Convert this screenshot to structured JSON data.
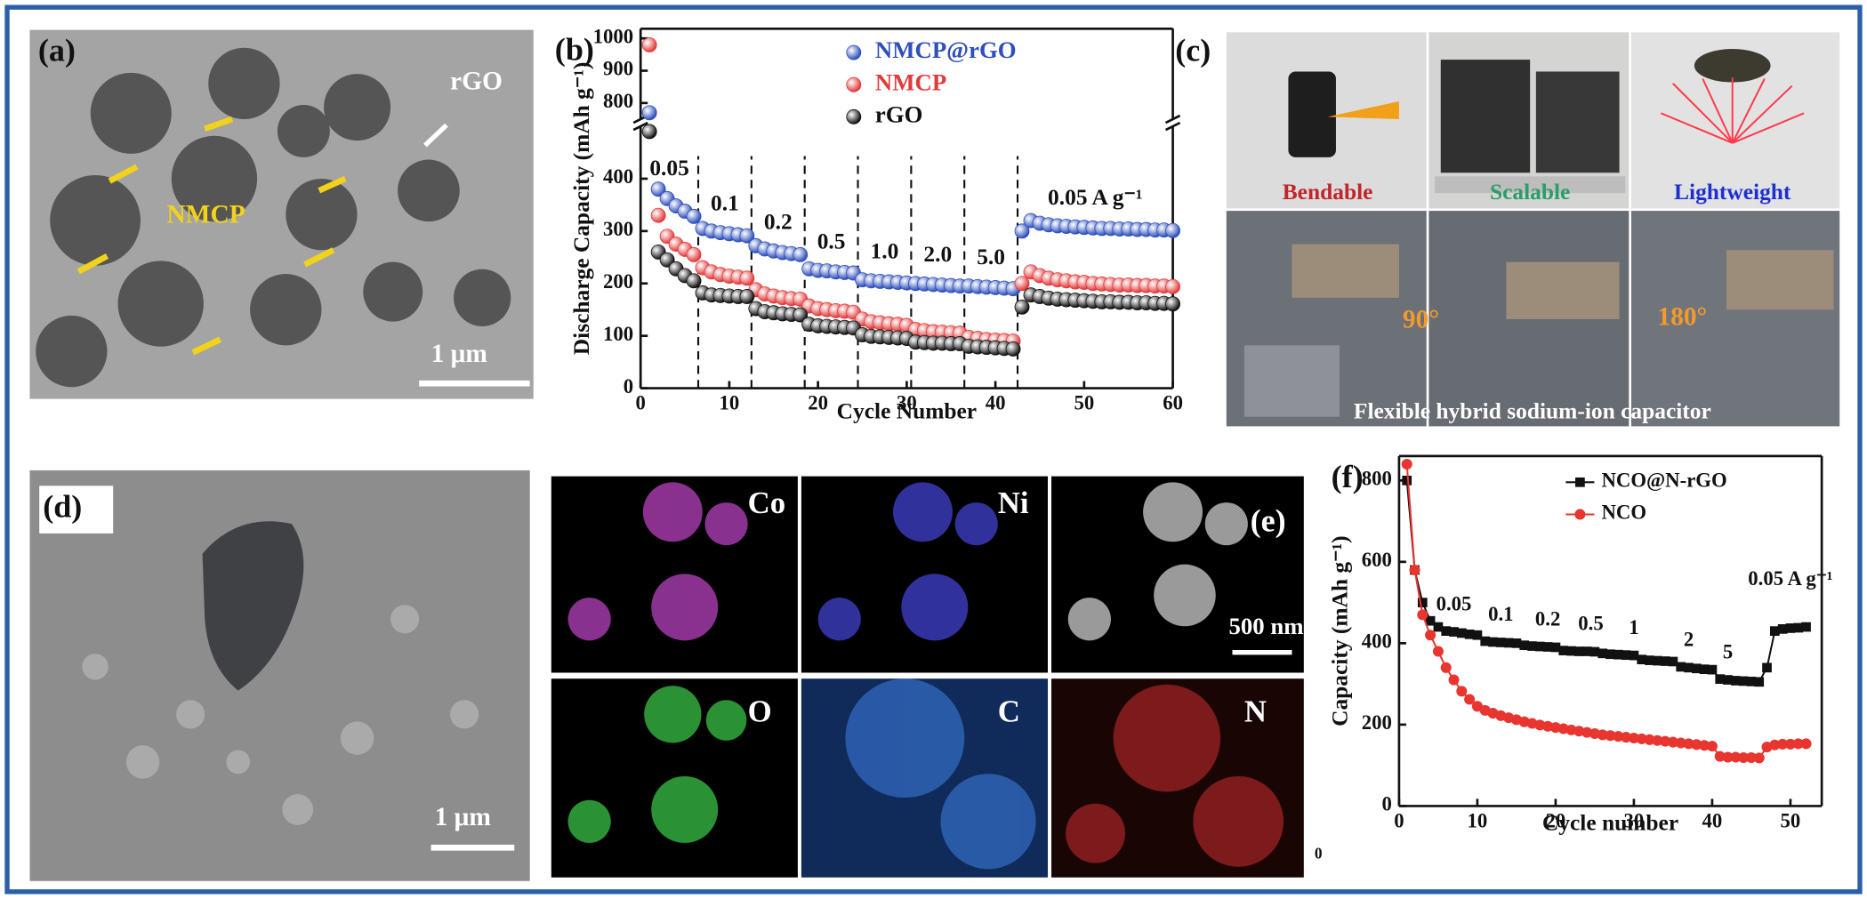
{
  "panels": {
    "a": {
      "label": "(a)",
      "rgo": "rGO",
      "nmcp": "NMCP",
      "scale_bar": "1 μm"
    },
    "c": {
      "label": "(c)",
      "captions": [
        "Bendable",
        "Scalable",
        "Lightweight"
      ],
      "bottom_caption": "Flexible hybrid sodium-ion capacitor",
      "angles": [
        "90°",
        "180°"
      ]
    },
    "d": {
      "label": "(d)",
      "scale_bar": "1 μm"
    },
    "e": {
      "label": "(e)",
      "elements": [
        "Co",
        "Ni",
        "O",
        "C",
        "N"
      ],
      "scale_bar": "500 nm",
      "axis_remnant": "0"
    }
  },
  "chart_data": [
    {
      "type": "line",
      "panel_label": "(b)",
      "x_label": "Cycle Number",
      "y_label": "Discharge Capacity (mAh g⁻¹)",
      "connect": false,
      "x": [
        1,
        2,
        3,
        4,
        5,
        6,
        7,
        8,
        9,
        10,
        11,
        12,
        13,
        14,
        15,
        16,
        17,
        18,
        19,
        20,
        21,
        22,
        23,
        24,
        25,
        26,
        27,
        28,
        29,
        30,
        31,
        32,
        33,
        34,
        35,
        36,
        37,
        38,
        39,
        40,
        41,
        42,
        43,
        44,
        45,
        46,
        47,
        48,
        49,
        50,
        51,
        52,
        53,
        54,
        55,
        56,
        57,
        58,
        59,
        60
      ],
      "series": [
        {
          "name": "NMCP@rGO",
          "color": "#2e4fbd",
          "marker": "sphere",
          "values": [
            770,
            380,
            362,
            348,
            338,
            328,
            305,
            300,
            297,
            295,
            293,
            291,
            272,
            266,
            262,
            259,
            257,
            255,
            228,
            225,
            224,
            222,
            221,
            220,
            207,
            205,
            204,
            203,
            202,
            201,
            200,
            199,
            198,
            197,
            196,
            195,
            195,
            194,
            193,
            192,
            191,
            190,
            300,
            320,
            315,
            312,
            310,
            309,
            308,
            307,
            306,
            305,
            305,
            304,
            304,
            303,
            303,
            302,
            302,
            301
          ]
        },
        {
          "name": "NMCP",
          "color": "#e23a3a",
          "marker": "sphere",
          "values": [
            980,
            330,
            290,
            275,
            265,
            255,
            230,
            222,
            217,
            214,
            212,
            210,
            188,
            180,
            176,
            173,
            171,
            170,
            157,
            152,
            150,
            148,
            147,
            145,
            132,
            127,
            125,
            123,
            122,
            120,
            112,
            110,
            108,
            107,
            106,
            105,
            97,
            95,
            93,
            92,
            91,
            90,
            200,
            222,
            215,
            210,
            207,
            205,
            203,
            202,
            200,
            199,
            198,
            197,
            197,
            196,
            196,
            195,
            195,
            194
          ]
        },
        {
          "name": "rGO",
          "color": "#111111",
          "marker": "sphere",
          "values": [
            490,
            260,
            245,
            228,
            215,
            205,
            182,
            178,
            177,
            176,
            175,
            175,
            152,
            146,
            144,
            142,
            141,
            140,
            122,
            119,
            118,
            117,
            116,
            115,
            102,
            99,
            98,
            97,
            96,
            95,
            88,
            87,
            86,
            86,
            85,
            85,
            80,
            79,
            78,
            77,
            76,
            75,
            155,
            178,
            175,
            172,
            170,
            169,
            168,
            167,
            166,
            165,
            165,
            164,
            164,
            163,
            163,
            162,
            162,
            161
          ]
        }
      ],
      "xlim": [
        0,
        60
      ],
      "xticks": [
        0,
        10,
        20,
        30,
        40,
        50,
        60
      ],
      "ylim": [
        0,
        500
      ],
      "yticks": [
        0,
        100,
        200,
        300,
        400
      ],
      "ylim_upper": [
        750,
        1030
      ],
      "yticks_upper": [
        800,
        900,
        1000
      ],
      "axis_break": true,
      "dividers": [
        6.5,
        12.5,
        18.5,
        24.5,
        30.5,
        36.5,
        42.5
      ],
      "annotations": [
        "0.05",
        "0.1",
        "0.2",
        "0.5",
        "1.0",
        "2.0",
        "5.0",
        "0.05 A g⁻¹"
      ]
    },
    {
      "type": "line",
      "panel_label": "(f)",
      "x_label": "Cycle number",
      "y_label": "Capacity (mAh g⁻¹)",
      "connect": true,
      "x": [
        1,
        2,
        3,
        4,
        5,
        6,
        7,
        8,
        9,
        10,
        11,
        12,
        13,
        14,
        15,
        16,
        17,
        18,
        19,
        20,
        21,
        22,
        23,
        24,
        25,
        26,
        27,
        28,
        29,
        30,
        31,
        32,
        33,
        34,
        35,
        36,
        37,
        38,
        39,
        40,
        41,
        42,
        43,
        44,
        45,
        46,
        47,
        48,
        49,
        50,
        51,
        52
      ],
      "series": [
        {
          "name": "NCO@N-rGO",
          "color": "#111111",
          "marker": "square",
          "values": [
            800,
            580,
            500,
            455,
            440,
            430,
            428,
            425,
            422,
            420,
            405,
            403,
            402,
            401,
            400,
            395,
            393,
            392,
            391,
            390,
            382,
            381,
            380,
            380,
            379,
            375,
            373,
            372,
            371,
            370,
            360,
            358,
            357,
            356,
            355,
            342,
            340,
            338,
            336,
            335,
            312,
            310,
            308,
            307,
            306,
            305,
            340,
            430,
            435,
            437,
            438,
            440
          ]
        },
        {
          "name": "NCO",
          "color": "#e8352f",
          "marker": "circle",
          "values": [
            840,
            580,
            470,
            420,
            380,
            340,
            310,
            282,
            262,
            245,
            235,
            228,
            222,
            217,
            212,
            207,
            203,
            199,
            196,
            193,
            190,
            187,
            184,
            181,
            178,
            175,
            173,
            171,
            169,
            167,
            165,
            163,
            161,
            159,
            157,
            155,
            153,
            151,
            149,
            147,
            122,
            120,
            120,
            119,
            119,
            118,
            145,
            150,
            152,
            152,
            153,
            153
          ]
        }
      ],
      "xlim": [
        0,
        54
      ],
      "xticks": [
        0,
        10,
        20,
        30,
        40,
        50
      ],
      "ylim": [
        0,
        860
      ],
      "yticks": [
        0,
        200,
        400,
        600,
        800
      ],
      "annotations": [
        "0.05",
        "0.1",
        "0.2",
        "0.5",
        "1",
        "2",
        "5",
        "0.05 A g⁻¹"
      ]
    }
  ]
}
